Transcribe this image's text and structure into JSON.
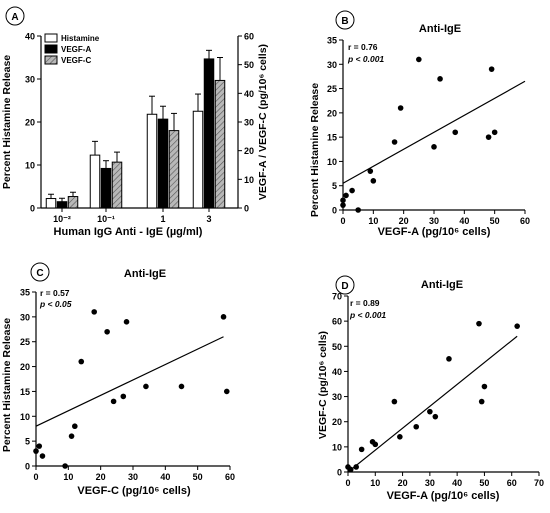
{
  "chart_data": [
    {
      "type": "bar",
      "panel": "A",
      "categories": [
        "10⁻²",
        "10⁻¹",
        "1",
        "3"
      ],
      "xlabel": "Human  IgG  Anti - IgE (µg/ml)",
      "ylabel_left": "Percent  Histamine  Release",
      "ylabel_right": "VEGF-A / VEGF-C (pg/10⁶ cells)",
      "ylim_left": [
        0,
        40
      ],
      "ylim_right": [
        0,
        60
      ],
      "yticks_left": [
        "0",
        "10",
        "20",
        "30",
        "40"
      ],
      "yticks_right": [
        "0",
        "10",
        "20",
        "30",
        "40",
        "50",
        "60"
      ],
      "legend_position": "top-left",
      "series": [
        {
          "name": "Histamine",
          "axis": "left",
          "fill": "#ffffff",
          "pattern": "none",
          "values": [
            2.2,
            12.3,
            21.8,
            22.5
          ],
          "errors": [
            1.0,
            3.2,
            4.2,
            4.0
          ]
        },
        {
          "name": "VEGF-A",
          "axis": "right",
          "fill": "#000000",
          "pattern": "none",
          "values": [
            2.2,
            13.8,
            31.0,
            52.0
          ],
          "errors": [
            1.2,
            2.7,
            4.5,
            3.0
          ]
        },
        {
          "name": "VEGF-C",
          "axis": "right",
          "fill": "#b8b8b8",
          "pattern": "hatch",
          "values": [
            4.0,
            16.0,
            27.0,
            44.5
          ],
          "errors": [
            1.5,
            3.5,
            6.0,
            8.0
          ]
        }
      ]
    },
    {
      "type": "scatter",
      "panel": "B",
      "title": "Anti-IgE",
      "stat_r": "r = 0.76",
      "stat_p": "p < 0.001",
      "xlabel": "VEGF-A  (pg/10⁶ cells)",
      "ylabel": "Percent  Histamine  Release",
      "xlim": [
        0,
        60
      ],
      "ylim": [
        0,
        35
      ],
      "xticks": [
        "0",
        "10",
        "20",
        "30",
        "40",
        "50",
        "60"
      ],
      "yticks": [
        "0",
        "5",
        "10",
        "15",
        "20",
        "25",
        "30",
        "35"
      ],
      "points": [
        [
          0,
          1
        ],
        [
          0,
          2
        ],
        [
          1,
          3
        ],
        [
          3,
          4
        ],
        [
          5,
          0
        ],
        [
          9,
          8
        ],
        [
          10,
          6
        ],
        [
          17,
          14
        ],
        [
          19,
          21
        ],
        [
          25,
          31
        ],
        [
          30,
          13
        ],
        [
          32,
          27
        ],
        [
          37,
          16
        ],
        [
          48,
          15
        ],
        [
          49,
          29
        ],
        [
          50,
          16
        ]
      ],
      "fit_line": [
        [
          0,
          5.5
        ],
        [
          60,
          26.5
        ]
      ]
    },
    {
      "type": "scatter",
      "panel": "C",
      "title": "Anti-IgE",
      "stat_r": "r = 0.57",
      "stat_p": "p < 0.05",
      "xlabel": "VEGF-C  (pg/10⁶ cells)",
      "ylabel": "Percent  Histamine  Release",
      "xlim": [
        0,
        60
      ],
      "ylim": [
        0,
        35
      ],
      "xticks": [
        "0",
        "10",
        "20",
        "30",
        "40",
        "50",
        "60"
      ],
      "yticks": [
        "0",
        "5",
        "10",
        "15",
        "20",
        "25",
        "30",
        "35"
      ],
      "points": [
        [
          0,
          3
        ],
        [
          1,
          4
        ],
        [
          2,
          2
        ],
        [
          9,
          0
        ],
        [
          11,
          6
        ],
        [
          12,
          8
        ],
        [
          14,
          21
        ],
        [
          18,
          31
        ],
        [
          22,
          27
        ],
        [
          24,
          13
        ],
        [
          27,
          14
        ],
        [
          28,
          29
        ],
        [
          34,
          16
        ],
        [
          45,
          16
        ],
        [
          58,
          30
        ],
        [
          59,
          15
        ]
      ],
      "fit_line": [
        [
          0,
          8
        ],
        [
          58,
          26
        ]
      ]
    },
    {
      "type": "scatter",
      "panel": "D",
      "title": "Anti-IgE",
      "stat_r": "r = 0.89",
      "stat_p": "p < 0.001",
      "xlabel": "VEGF-A  (pg/10⁶ cells)",
      "ylabel": "VEGF-C  (pg/10⁶ cells)",
      "xlim": [
        0,
        70
      ],
      "ylim": [
        0,
        70
      ],
      "xticks": [
        "0",
        "10",
        "20",
        "30",
        "40",
        "50",
        "60",
        "70"
      ],
      "yticks": [
        "0",
        "10",
        "20",
        "30",
        "40",
        "50",
        "60",
        "70"
      ],
      "points": [
        [
          0,
          2
        ],
        [
          1,
          1
        ],
        [
          3,
          2
        ],
        [
          5,
          9
        ],
        [
          9,
          12
        ],
        [
          10,
          11
        ],
        [
          17,
          28
        ],
        [
          19,
          14
        ],
        [
          25,
          18
        ],
        [
          30,
          24
        ],
        [
          32,
          22
        ],
        [
          37,
          45
        ],
        [
          48,
          59
        ],
        [
          49,
          28
        ],
        [
          50,
          34
        ],
        [
          62,
          58
        ]
      ],
      "fit_line": [
        [
          0,
          0
        ],
        [
          62,
          54
        ]
      ]
    }
  ]
}
